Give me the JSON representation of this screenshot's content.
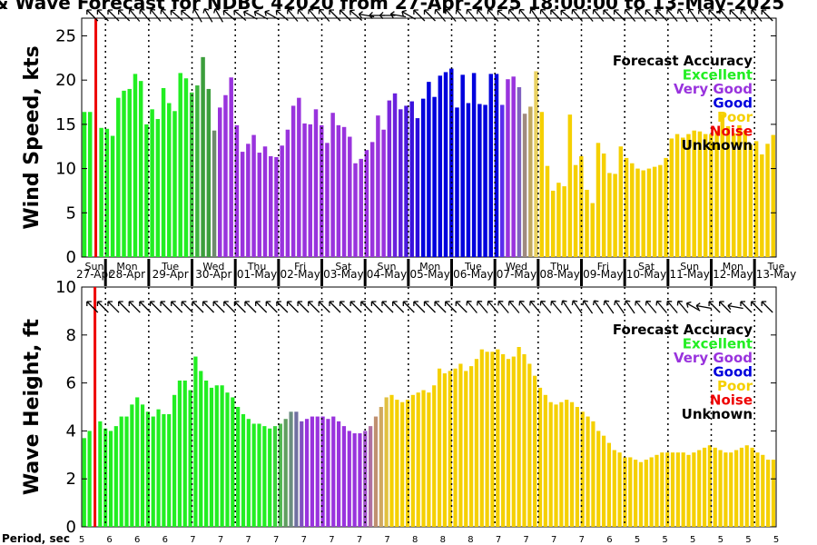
{
  "title": "& Wave Forecast for NDBC 42020 from 27-Apr-2025 18:00:00 to 13-May-2025",
  "legend": {
    "title": "Forecast Accuracy",
    "items": [
      {
        "label": "Excellent",
        "color": "#22ee22"
      },
      {
        "label": "Very Good",
        "color": "#9933dd"
      },
      {
        "label": "Good",
        "color": "#0000dd"
      },
      {
        "label": "Poor",
        "color": "#f5d000"
      },
      {
        "label": "Noise",
        "color": "#ee0000"
      },
      {
        "label": "Unknown",
        "color": "#000000"
      }
    ]
  },
  "days": [
    {
      "day": "Sun",
      "date": "27-Apr"
    },
    {
      "day": "Mon",
      "date": "28-Apr"
    },
    {
      "day": "Tue",
      "date": "29-Apr"
    },
    {
      "day": "Wed",
      "date": "30-Apr"
    },
    {
      "day": "Thu",
      "date": "01-May"
    },
    {
      "day": "Fri",
      "date": "02-May"
    },
    {
      "day": "Sat",
      "date": "03-May"
    },
    {
      "day": "Sun",
      "date": "04-May"
    },
    {
      "day": "Mon",
      "date": "05-May"
    },
    {
      "day": "Tue",
      "date": "06-May"
    },
    {
      "day": "Wed",
      "date": "07-May"
    },
    {
      "day": "Thu",
      "date": "08-May"
    },
    {
      "day": "Fri",
      "date": "09-May"
    },
    {
      "day": "Sat",
      "date": "10-May"
    },
    {
      "day": "Sun",
      "date": "11-May"
    },
    {
      "day": "Mon",
      "date": "12-May"
    },
    {
      "day": "Tue",
      "date": "13-May"
    }
  ],
  "period_label": "Period, sec",
  "periods": [
    "5",
    "6",
    "6",
    "6",
    "7",
    "7",
    "7",
    "7",
    "7",
    "7",
    "7",
    "7",
    "8",
    "8",
    "8",
    "7",
    "7",
    "7",
    "7",
    "6",
    "5",
    "5",
    "5",
    "5",
    "5",
    "5"
  ],
  "chart_data": [
    {
      "type": "bar",
      "ylabel": "Wind Speed, kts",
      "ylim": [
        0,
        27
      ],
      "yticks": [
        0,
        5,
        10,
        15,
        20,
        25
      ],
      "values": [
        16.4,
        16.4,
        0,
        14.6,
        14.5,
        13.7,
        18.0,
        18.8,
        19.0,
        20.7,
        19.9,
        15.0,
        16.7,
        15.6,
        19.1,
        17.4,
        16.5,
        20.8,
        20.2,
        18.6,
        19.4,
        22.6,
        19.0,
        14.3,
        16.9,
        18.3,
        20.3,
        14.9,
        11.9,
        12.8,
        13.8,
        11.8,
        12.5,
        11.4,
        11.3,
        12.6,
        14.4,
        17.1,
        18.0,
        15.1,
        15.0,
        16.7,
        14.9,
        12.9,
        16.3,
        14.9,
        14.7,
        13.6,
        10.6,
        11.1,
        12.1,
        13.0,
        16.0,
        14.4,
        17.7,
        18.5,
        16.7,
        17.1,
        17.6,
        15.7,
        17.9,
        19.8,
        18.1,
        20.5,
        20.9,
        21.3,
        16.9,
        20.6,
        17.4,
        20.8,
        17.3,
        17.2,
        20.7,
        20.7,
        17.2,
        20.1,
        20.4,
        19.2,
        16.2,
        17.0,
        21.0,
        16.4,
        10.3,
        7.5,
        8.4,
        8.0,
        16.1,
        10.4,
        11.4,
        7.6,
        6.1,
        12.9,
        11.7,
        9.5,
        9.4,
        12.5,
        11.2,
        10.6,
        10.0,
        9.8,
        10.0,
        10.2,
        10.4,
        11.2,
        13.4,
        13.9,
        13.5,
        13.9,
        14.3,
        14.2,
        13.9,
        13.9,
        14.3,
        16.2,
        14.8,
        14.0,
        14.9,
        14.3,
        12.7,
        13.1,
        11.6,
        12.8,
        13.8
      ],
      "colors": [
        "#22ee22",
        "#22ee22",
        "#ee0000",
        "#22ee22",
        "#22ee22",
        "#22ee22",
        "#22ee22",
        "#22ee22",
        "#22ee22",
        "#22ee22",
        "#22ee22",
        "#22ee22",
        "#22ee22",
        "#22ee22",
        "#22ee22",
        "#22ee22",
        "#22ee22",
        "#22ee22",
        "#22ee22",
        "#3fcc3f",
        "#3fb63f",
        "#3c9e3c",
        "#3c9e3c",
        "#6f8a6f",
        "#9933dd",
        "#9933dd",
        "#9933dd",
        "#9933dd",
        "#9933dd",
        "#9933dd",
        "#9933dd",
        "#9933dd",
        "#9933dd",
        "#9933dd",
        "#9933dd",
        "#9933dd",
        "#9933dd",
        "#9933dd",
        "#9933dd",
        "#9933dd",
        "#9933dd",
        "#9933dd",
        "#9933dd",
        "#9933dd",
        "#9933dd",
        "#9933dd",
        "#9933dd",
        "#9933dd",
        "#9933dd",
        "#9933dd",
        "#9933dd",
        "#9933dd",
        "#9933dd",
        "#9933dd",
        "#7a28dd",
        "#6a22dd",
        "#5a1ddd",
        "#4a18dd",
        "#3a12dd",
        "#2a0cdd",
        "#0000dd",
        "#0000dd",
        "#0000dd",
        "#0000dd",
        "#0000dd",
        "#0000dd",
        "#0000dd",
        "#0000dd",
        "#0000dd",
        "#0000dd",
        "#0000dd",
        "#0000dd",
        "#0000dd",
        "#0000dd",
        "#5a2dee",
        "#9933dd",
        "#9933dd",
        "#8060c0",
        "#a08a80",
        "#c0a860",
        "#e8d060",
        "#f5d000",
        "#f5d000",
        "#f5d000",
        "#f5d000",
        "#f5d000",
        "#f5d000",
        "#f5d000",
        "#f5d000",
        "#f5d000",
        "#f5d000",
        "#f5d000",
        "#f5d000",
        "#f5d000",
        "#f5d000",
        "#f5d000",
        "#f5d000",
        "#f5d000",
        "#f5d000",
        "#f5d000",
        "#f5d000",
        "#f5d000",
        "#f5d000",
        "#f5d000",
        "#f5d000",
        "#f5d000",
        "#f5d000",
        "#f5d000",
        "#f5d000",
        "#f5d000",
        "#f5d000",
        "#f5d000",
        "#f5d000",
        "#f5d000",
        "#f5d000",
        "#f5d000",
        "#f5d000",
        "#f5d000",
        "#f5d000",
        "#f5d000",
        "#f5d000",
        "#f5d000",
        "#f5d000"
      ],
      "arrow_dirs": [
        135,
        135,
        135,
        135,
        140,
        140,
        140,
        140,
        130,
        130,
        150,
        150,
        150,
        130,
        130,
        120,
        120,
        120,
        130,
        140,
        140,
        140,
        140,
        135,
        135,
        130,
        100,
        90,
        90,
        100,
        120,
        135,
        135,
        140,
        140,
        140,
        140,
        140,
        140,
        130,
        140,
        140,
        145,
        140,
        135,
        130,
        140,
        140,
        140,
        135,
        135,
        140,
        140,
        135,
        135,
        140,
        145,
        145,
        140,
        135,
        140,
        135,
        140,
        140,
        135
      ]
    },
    {
      "type": "bar",
      "ylabel": "Wave Height, ft",
      "ylim": [
        0,
        10
      ],
      "yticks": [
        0,
        2,
        4,
        6,
        8,
        10
      ],
      "values": [
        3.7,
        4.0,
        0,
        4.4,
        4.1,
        4.0,
        4.2,
        4.6,
        4.6,
        5.1,
        5.4,
        5.1,
        4.8,
        4.6,
        4.9,
        4.7,
        4.7,
        5.5,
        6.1,
        6.1,
        5.7,
        7.1,
        6.5,
        6.1,
        5.8,
        5.9,
        5.9,
        5.6,
        5.4,
        5.0,
        4.7,
        4.5,
        4.3,
        4.3,
        4.2,
        4.1,
        4.2,
        4.3,
        4.5,
        4.8,
        4.8,
        4.4,
        4.5,
        4.6,
        4.6,
        4.6,
        4.5,
        4.6,
        4.4,
        4.2,
        4.0,
        3.9,
        3.9,
        4.0,
        4.2,
        4.6,
        5.0,
        5.4,
        5.5,
        5.3,
        5.2,
        5.3,
        5.5,
        5.6,
        5.7,
        5.6,
        5.9,
        6.6,
        6.4,
        6.5,
        6.6,
        6.8,
        6.5,
        6.7,
        7.0,
        7.4,
        7.3,
        7.3,
        7.4,
        7.2,
        7.0,
        7.1,
        7.5,
        7.2,
        6.8,
        6.3,
        5.8,
        5.5,
        5.2,
        5.1,
        5.2,
        5.3,
        5.2,
        5.0,
        4.8,
        4.6,
        4.4,
        4.0,
        3.8,
        3.5,
        3.2,
        3.1,
        2.9,
        2.9,
        2.8,
        2.7,
        2.8,
        2.9,
        3.0,
        3.1,
        3.1,
        3.1,
        3.1,
        3.1,
        3.0,
        3.1,
        3.2,
        3.3,
        3.4,
        3.3,
        3.2,
        3.1,
        3.1,
        3.2,
        3.3,
        3.4,
        3.3,
        3.1,
        3.0,
        2.8,
        2.8
      ],
      "colors": [
        "#22ee22",
        "#22ee22",
        "#ee0000",
        "#22ee22",
        "#22ee22",
        "#22ee22",
        "#22ee22",
        "#22ee22",
        "#22ee22",
        "#22ee22",
        "#22ee22",
        "#22ee22",
        "#22ee22",
        "#22ee22",
        "#22ee22",
        "#22ee22",
        "#22ee22",
        "#22ee22",
        "#22ee22",
        "#22ee22",
        "#22ee22",
        "#22ee22",
        "#22ee22",
        "#22ee22",
        "#22ee22",
        "#22ee22",
        "#22ee22",
        "#22ee22",
        "#22ee22",
        "#22ee22",
        "#22ee22",
        "#22ee22",
        "#22ee22",
        "#22ee22",
        "#22ee22",
        "#22ee22",
        "#3cd63c",
        "#50b850",
        "#609f60",
        "#6a8d80",
        "#7070a0",
        "#8050c0",
        "#9933dd",
        "#9933dd",
        "#9933dd",
        "#9933dd",
        "#9933dd",
        "#9933dd",
        "#9933dd",
        "#9933dd",
        "#9933dd",
        "#9933dd",
        "#9933dd",
        "#a050c8",
        "#b070a0",
        "#c09070",
        "#d0a860",
        "#e0c040",
        "#f5d000",
        "#f5d000",
        "#f5d000",
        "#f5d000",
        "#f5d000",
        "#f5d000",
        "#f5d000",
        "#f5d000",
        "#f5d000",
        "#f5d000",
        "#f5d000",
        "#f5d000",
        "#f5d000",
        "#f5d000",
        "#f5d000",
        "#f5d000",
        "#f5d000",
        "#f5d000",
        "#f5d000",
        "#f5d000",
        "#f5d000",
        "#f5d000",
        "#f5d000",
        "#f5d000",
        "#f5d000",
        "#f5d000",
        "#f5d000",
        "#f5d000",
        "#f5d000",
        "#f5d000",
        "#f5d000",
        "#f5d000",
        "#f5d000",
        "#f5d000",
        "#f5d000",
        "#f5d000",
        "#f5d000",
        "#f5d000",
        "#f5d000",
        "#f5d000",
        "#f5d000",
        "#f5d000",
        "#f5d000",
        "#f5d000",
        "#f5d000",
        "#f5d000",
        "#f5d000",
        "#f5d000",
        "#f5d000",
        "#f5d000",
        "#f5d000",
        "#f5d000",
        "#f5d000",
        "#f5d000",
        "#f5d000",
        "#f5d000",
        "#f5d000",
        "#f5d000",
        "#f5d000",
        "#f5d000",
        "#f5d000",
        "#f5d000",
        "#f5d000",
        "#f5d000",
        "#f5d000",
        "#f5d000",
        "#f5d000",
        "#f5d000",
        "#f5d000",
        "#f5d000",
        "#f5d000",
        "#f5d000",
        "#f5d000",
        "#f5d000",
        "#f5d000",
        "#f5d000",
        "#f5d000",
        "#f5d000"
      ],
      "arrow_dirs": [
        135,
        135,
        135,
        135,
        135,
        135,
        135,
        135,
        135,
        135,
        135,
        135,
        135,
        135,
        135,
        135,
        135,
        135,
        135,
        135,
        135,
        135,
        135,
        135,
        135,
        135,
        135,
        135,
        135,
        135,
        135,
        135,
        135,
        135,
        135,
        135,
        140,
        140,
        140,
        140,
        140,
        140,
        140,
        140,
        140,
        145,
        145,
        145,
        145,
        145,
        145,
        145,
        140,
        140,
        140,
        140,
        140,
        120,
        100,
        135,
        135,
        100,
        135,
        135,
        135
      ]
    }
  ]
}
